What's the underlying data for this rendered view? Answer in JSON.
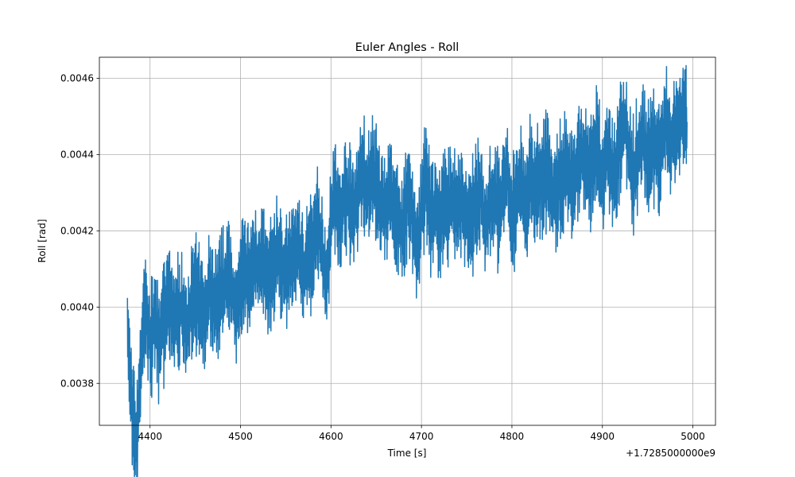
{
  "chart_data": {
    "type": "line",
    "title": "Euler Angles - Roll",
    "xlabel": "Time [s]",
    "ylabel": "Roll [rad]",
    "x_offset_label": "+1.7285000000e9",
    "xlim": [
      4344,
      5025
    ],
    "ylim": [
      0.00369,
      0.004655
    ],
    "xticks": [
      4400,
      4500,
      4600,
      4700,
      4800,
      4900,
      5000
    ],
    "xtick_labels": [
      "4400",
      "4500",
      "4600",
      "4700",
      "4800",
      "4900",
      "5000"
    ],
    "yticks": [
      0.0038,
      0.004,
      0.0042,
      0.0044,
      0.0046
    ],
    "ytick_labels": [
      "0.0038",
      "0.0040",
      "0.0042",
      "0.0044",
      "0.0046"
    ],
    "grid": true,
    "color": "#1f77b4",
    "series": [
      {
        "x": [
          4375,
          4380,
          4385,
          4390,
          4395,
          4400,
          4405,
          4410,
          4415,
          4420,
          4425,
          4430,
          4435,
          4440,
          4445,
          4450,
          4455,
          4460,
          4465,
          4470,
          4475,
          4480,
          4485,
          4490,
          4495,
          4500,
          4505,
          4510,
          4515,
          4520,
          4525,
          4530,
          4535,
          4540,
          4545,
          4550,
          4555,
          4560,
          4565,
          4570,
          4575,
          4580,
          4585,
          4590,
          4595,
          4600,
          4605,
          4610,
          4615,
          4620,
          4625,
          4630,
          4635,
          4640,
          4645,
          4650,
          4655,
          4660,
          4665,
          4670,
          4675,
          4680,
          4685,
          4690,
          4695,
          4700,
          4705,
          4710,
          4715,
          4720,
          4725,
          4730,
          4735,
          4740,
          4745,
          4750,
          4755,
          4760,
          4765,
          4770,
          4775,
          4780,
          4785,
          4790,
          4795,
          4800,
          4805,
          4810,
          4815,
          4820,
          4825,
          4830,
          4835,
          4840,
          4845,
          4850,
          4855,
          4860,
          4865,
          4870,
          4875,
          4880,
          4885,
          4890,
          4895,
          4900,
          4905,
          4910,
          4915,
          4920,
          4925,
          4930,
          4935,
          4940,
          4945,
          4950,
          4955,
          4960,
          4965,
          4970,
          4975,
          4980,
          4985,
          4990,
          4993
        ],
        "y": [
          0.00385,
          0.00378,
          0.00376,
          0.00386,
          0.00394,
          0.00391,
          0.00395,
          0.00393,
          0.00396,
          0.00399,
          0.00398,
          0.00398,
          0.00399,
          0.00397,
          0.004,
          0.00402,
          0.00401,
          0.004,
          0.00403,
          0.00402,
          0.00403,
          0.00404,
          0.00406,
          0.00405,
          0.00402,
          0.00406,
          0.00409,
          0.00407,
          0.00411,
          0.0041,
          0.00411,
          0.00408,
          0.0041,
          0.00412,
          0.00411,
          0.0041,
          0.00412,
          0.00413,
          0.00414,
          0.00412,
          0.00415,
          0.00415,
          0.00419,
          0.00416,
          0.00414,
          0.00422,
          0.00425,
          0.00423,
          0.00428,
          0.00427,
          0.00428,
          0.0043,
          0.00433,
          0.00431,
          0.00433,
          0.00431,
          0.00428,
          0.00427,
          0.00428,
          0.00425,
          0.00424,
          0.00423,
          0.00427,
          0.00424,
          0.00421,
          0.00425,
          0.00429,
          0.00424,
          0.00426,
          0.00424,
          0.00427,
          0.00426,
          0.00428,
          0.00426,
          0.00427,
          0.00425,
          0.00425,
          0.00426,
          0.00428,
          0.00424,
          0.00427,
          0.00428,
          0.00427,
          0.00429,
          0.00432,
          0.00427,
          0.00429,
          0.00431,
          0.00428,
          0.00433,
          0.00431,
          0.00433,
          0.00433,
          0.00435,
          0.00432,
          0.00433,
          0.00434,
          0.00435,
          0.00434,
          0.00435,
          0.00438,
          0.00438,
          0.00437,
          0.00437,
          0.0044,
          0.00435,
          0.00439,
          0.00437,
          0.00438,
          0.00443,
          0.00444,
          0.00441,
          0.00438,
          0.00441,
          0.00443,
          0.0044,
          0.00442,
          0.00442,
          0.00443,
          0.00446,
          0.00445,
          0.00447,
          0.00449,
          0.0045,
          0.00449
        ]
      }
    ]
  }
}
